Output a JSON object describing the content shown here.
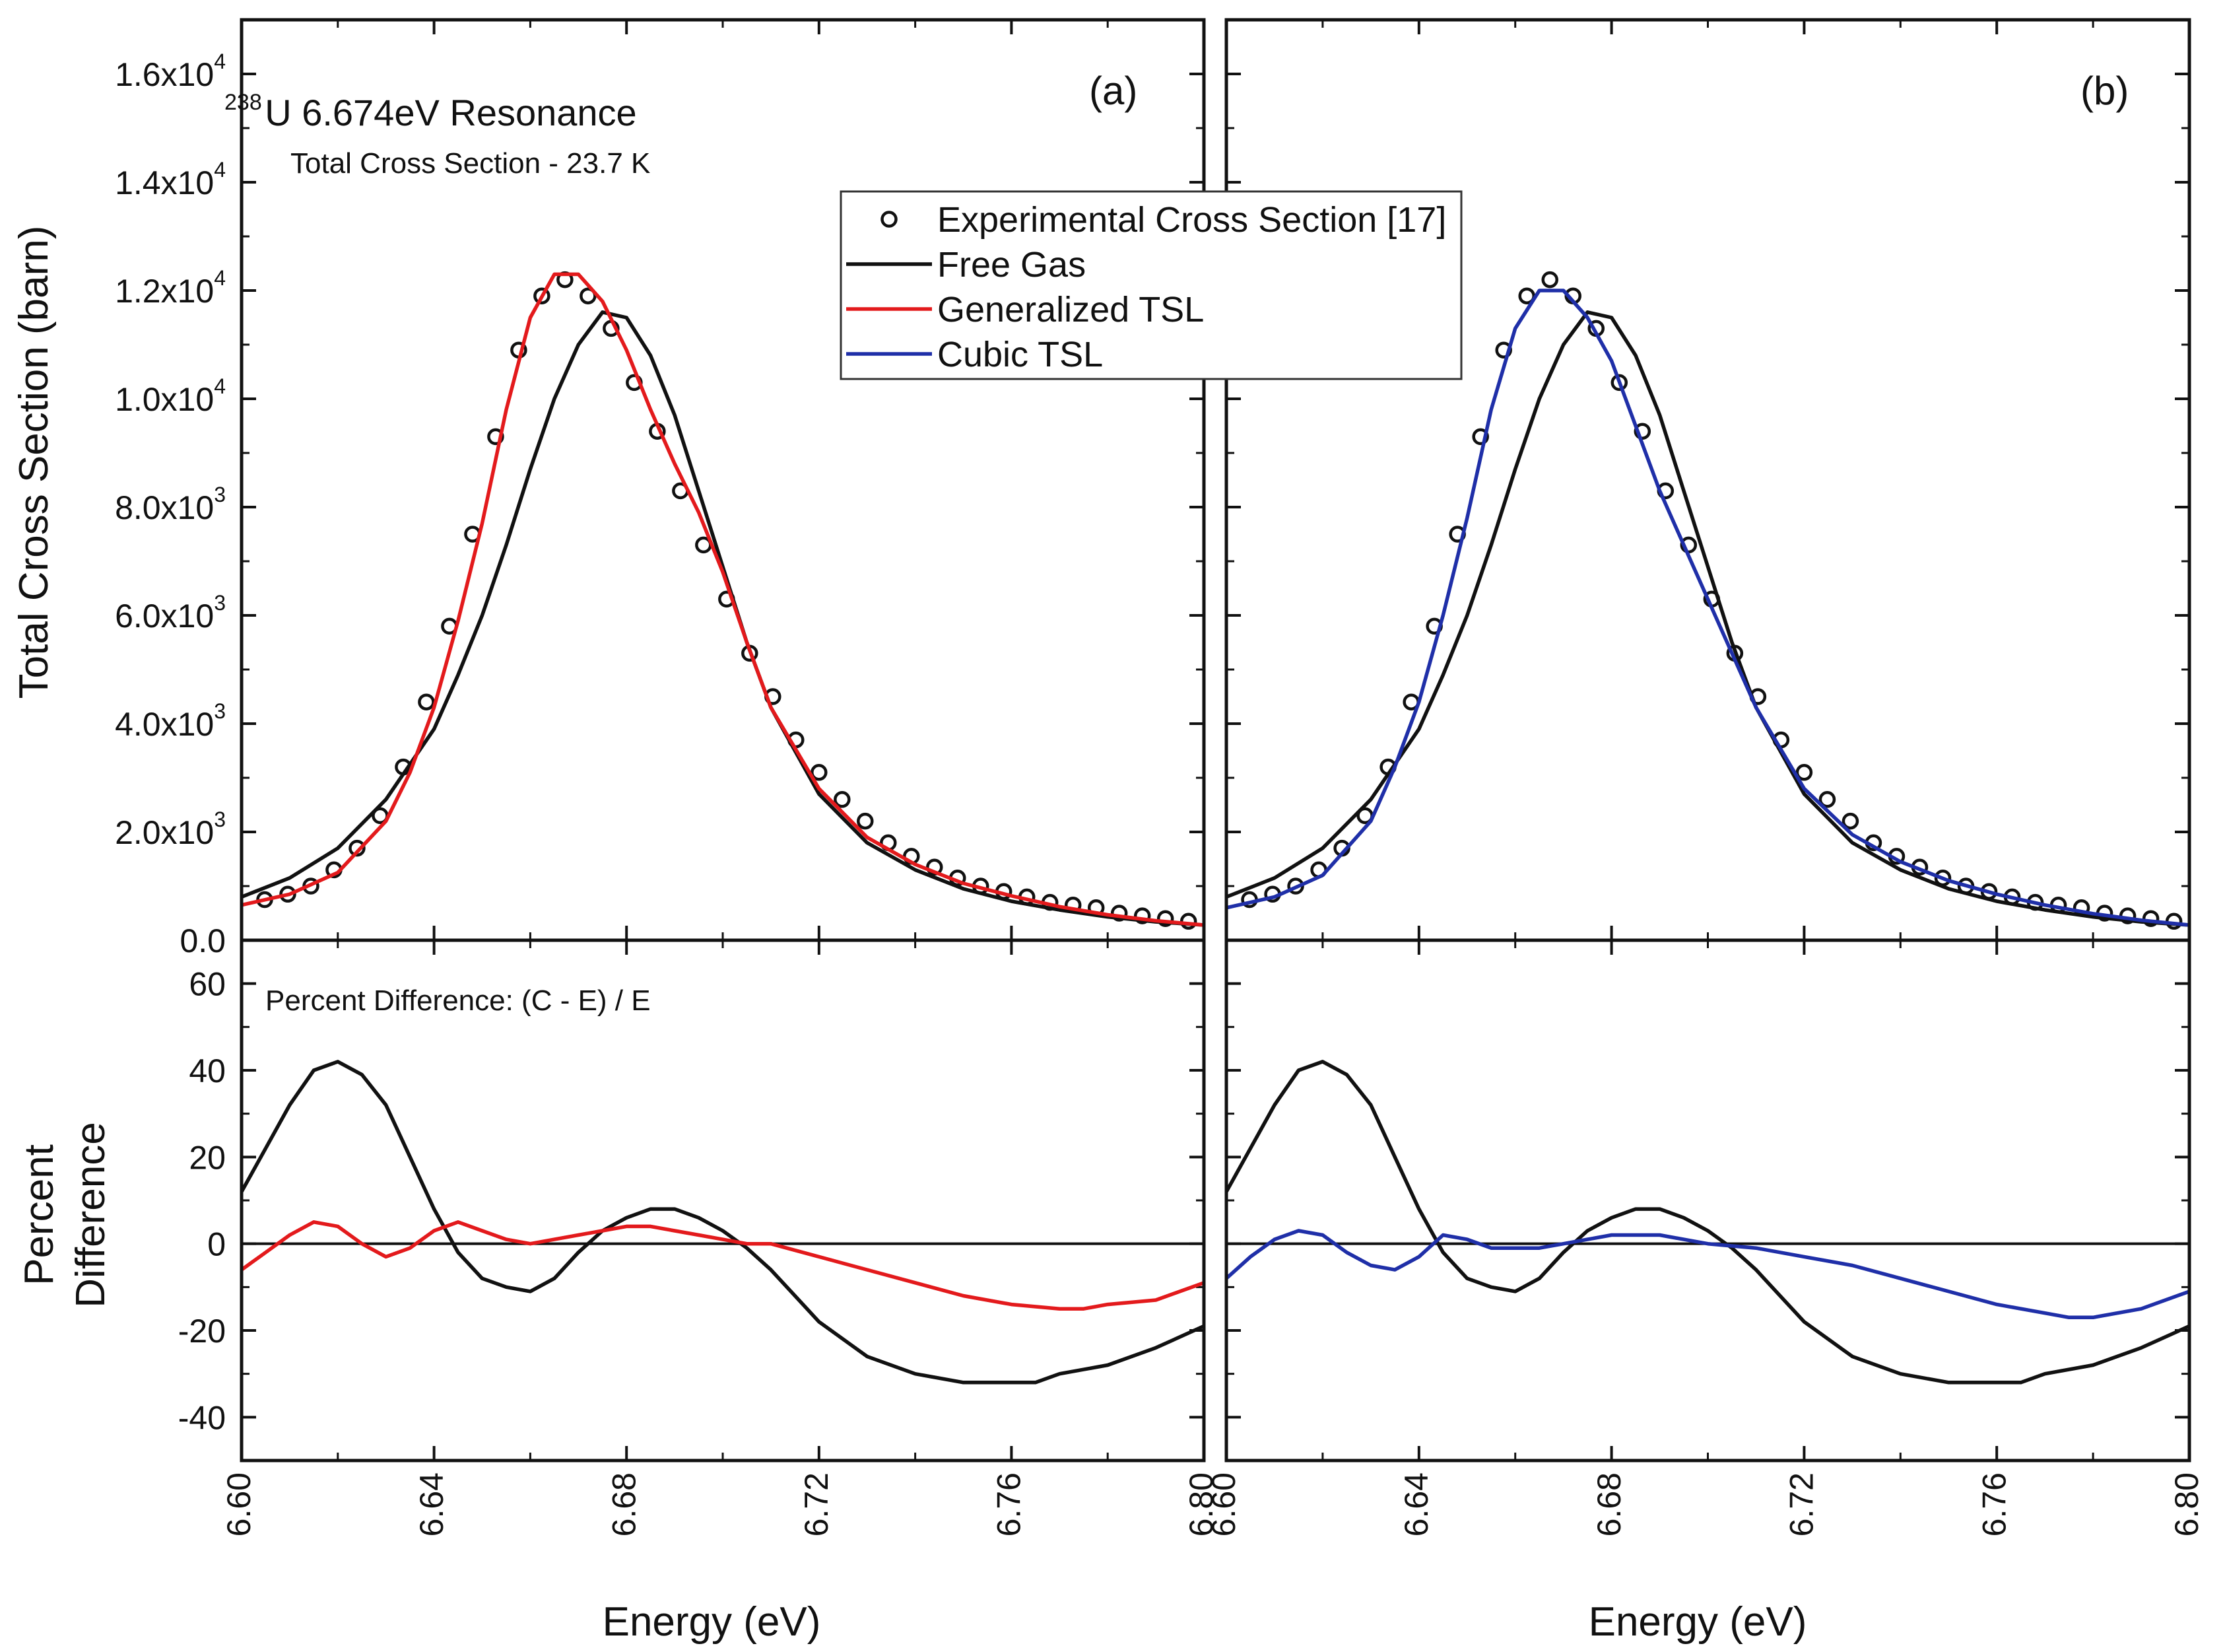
{
  "chart_data": [
    {
      "type": "line",
      "panel_label": "(a)",
      "annotation_title": "U 6.674eV Resonance",
      "annotation_title_sup": "238",
      "annotation_subtitle": "Total Cross Section - 23.7 K",
      "ylabel": "Total Cross Section (barn)",
      "xlabel": "Energy (eV)",
      "xlim": [
        6.6,
        6.8
      ],
      "ylim": [
        0,
        17000
      ],
      "x_ticks": [
        "6.60",
        "6.64",
        "6.68",
        "6.72",
        "6.76",
        "6.80"
      ],
      "y_ticks": [
        {
          "base": "0.0",
          "exp": ""
        },
        {
          "base": "2.0x10",
          "exp": "3"
        },
        {
          "base": "4.0x10",
          "exp": "3"
        },
        {
          "base": "6.0x10",
          "exp": "3"
        },
        {
          "base": "8.0x10",
          "exp": "3"
        },
        {
          "base": "1.0x10",
          "exp": "4"
        },
        {
          "base": "1.2x10",
          "exp": "4"
        },
        {
          "base": "1.4x10",
          "exp": "4"
        },
        {
          "base": "1.6x10",
          "exp": "4"
        }
      ],
      "legend": {
        "placement": "top-right",
        "items": [
          "Experimental Cross Section [17]",
          "Free Gas",
          "Generalized TSL",
          "Cubic TSL"
        ]
      },
      "series": [
        {
          "name": "Experimental Cross Section [17]",
          "color": "#111111",
          "style": "markers",
          "x": [
            6.6048,
            6.6096,
            6.6144,
            6.6192,
            6.624,
            6.6288,
            6.6336,
            6.6384,
            6.6432,
            6.648,
            6.6528,
            6.6576,
            6.6624,
            6.6672,
            6.672,
            6.6768,
            6.6816,
            6.6864,
            6.6912,
            6.696,
            6.7008,
            6.7056,
            6.7104,
            6.7152,
            6.72,
            6.7248,
            6.7296,
            6.7344,
            6.7392,
            6.744,
            6.7488,
            6.7536,
            6.7584,
            6.7632,
            6.768,
            6.7728,
            6.7776,
            6.7824,
            6.7872,
            6.792,
            6.7968
          ],
          "y": [
            750,
            850,
            1000,
            1300,
            1700,
            2300,
            3200,
            4400,
            5800,
            7500,
            9300,
            10900,
            11900,
            12200,
            11900,
            11300,
            10300,
            9400,
            8300,
            7300,
            6300,
            5300,
            4500,
            3700,
            3100,
            2600,
            2200,
            1800,
            1550,
            1350,
            1150,
            1000,
            900,
            800,
            700,
            650,
            600,
            500,
            450,
            400,
            350
          ]
        },
        {
          "name": "Free Gas",
          "color": "#111111",
          "style": "line",
          "x": [
            6.6,
            6.61,
            6.62,
            6.63,
            6.64,
            6.645,
            6.65,
            6.655,
            6.66,
            6.665,
            6.67,
            6.675,
            6.68,
            6.685,
            6.69,
            6.695,
            6.7,
            6.705,
            6.71,
            6.72,
            6.73,
            6.74,
            6.75,
            6.76,
            6.77,
            6.78,
            6.79,
            6.8
          ],
          "y": [
            800,
            1150,
            1700,
            2600,
            3900,
            4900,
            6000,
            7300,
            8700,
            10000,
            11000,
            11600,
            11500,
            10800,
            9700,
            8300,
            6900,
            5500,
            4300,
            2700,
            1800,
            1300,
            950,
            720,
            560,
            430,
            340,
            280
          ]
        },
        {
          "name": "Generalized TSL",
          "color": "#e31a1c",
          "style": "line",
          "x": [
            6.6,
            6.61,
            6.62,
            6.63,
            6.635,
            6.64,
            6.645,
            6.65,
            6.655,
            6.66,
            6.665,
            6.67,
            6.675,
            6.68,
            6.685,
            6.69,
            6.695,
            6.7,
            6.705,
            6.71,
            6.72,
            6.73,
            6.74,
            6.75,
            6.76,
            6.77,
            6.78,
            6.79,
            6.8
          ],
          "y": [
            650,
            850,
            1250,
            2200,
            3100,
            4300,
            5900,
            7700,
            9800,
            11500,
            12300,
            12300,
            11800,
            10900,
            9800,
            8800,
            7900,
            6800,
            5500,
            4300,
            2800,
            1900,
            1400,
            1050,
            820,
            620,
            470,
            360,
            280
          ]
        }
      ]
    },
    {
      "type": "line",
      "ylabel": "Percent Difference",
      "xlabel": "Energy (eV)",
      "annotation": "Percent Difference: (C - E) / E",
      "xlim": [
        6.6,
        6.8
      ],
      "ylim": [
        -50,
        70
      ],
      "x_ticks": [
        "6.60",
        "6.64",
        "6.68",
        "6.72",
        "6.76",
        "6.80"
      ],
      "y_ticks": [
        "-40",
        "-20",
        "0",
        "20",
        "40",
        "60"
      ],
      "series": [
        {
          "name": "Free Gas",
          "color": "#111111",
          "style": "line",
          "x": [
            6.6,
            6.605,
            6.61,
            6.615,
            6.62,
            6.625,
            6.63,
            6.635,
            6.64,
            6.645,
            6.65,
            6.655,
            6.66,
            6.665,
            6.67,
            6.675,
            6.68,
            6.685,
            6.69,
            6.695,
            6.7,
            6.705,
            6.71,
            6.715,
            6.72,
            6.73,
            6.74,
            6.75,
            6.76,
            6.765,
            6.77,
            6.78,
            6.79,
            6.8
          ],
          "y": [
            12,
            22,
            32,
            40,
            42,
            39,
            32,
            20,
            8,
            -2,
            -8,
            -10,
            -11,
            -8,
            -2,
            3,
            6,
            8,
            8,
            6,
            3,
            -1,
            -6,
            -12,
            -18,
            -26,
            -30,
            -32,
            -32,
            -32,
            -30,
            -28,
            -24,
            -19
          ]
        },
        {
          "name": "Generalized TSL",
          "color": "#e31a1c",
          "style": "line",
          "x": [
            6.6,
            6.605,
            6.61,
            6.615,
            6.62,
            6.625,
            6.63,
            6.635,
            6.64,
            6.645,
            6.65,
            6.655,
            6.66,
            6.665,
            6.67,
            6.675,
            6.68,
            6.685,
            6.69,
            6.695,
            6.7,
            6.705,
            6.71,
            6.72,
            6.73,
            6.74,
            6.75,
            6.76,
            6.77,
            6.775,
            6.78,
            6.79,
            6.8
          ],
          "y": [
            -6,
            -2,
            2,
            5,
            4,
            0,
            -3,
            -1,
            3,
            5,
            3,
            1,
            0,
            1,
            2,
            3,
            4,
            4,
            3,
            2,
            1,
            0,
            0,
            -3,
            -6,
            -9,
            -12,
            -14,
            -15,
            -15,
            -14,
            -13,
            -9
          ]
        }
      ]
    },
    {
      "type": "line",
      "panel_label": "(b)",
      "xlabel": "Energy (eV)",
      "xlim": [
        6.6,
        6.8
      ],
      "ylim": [
        0,
        17000
      ],
      "x_ticks": [
        "6.60",
        "6.64",
        "6.68",
        "6.72",
        "6.76",
        "6.80"
      ],
      "series": [
        {
          "name": "Experimental Cross Section [17]",
          "color": "#111111",
          "style": "markers",
          "x": [
            6.6048,
            6.6096,
            6.6144,
            6.6192,
            6.624,
            6.6288,
            6.6336,
            6.6384,
            6.6432,
            6.648,
            6.6528,
            6.6576,
            6.6624,
            6.6672,
            6.672,
            6.6768,
            6.6816,
            6.6864,
            6.6912,
            6.696,
            6.7008,
            6.7056,
            6.7104,
            6.7152,
            6.72,
            6.7248,
            6.7296,
            6.7344,
            6.7392,
            6.744,
            6.7488,
            6.7536,
            6.7584,
            6.7632,
            6.768,
            6.7728,
            6.7776,
            6.7824,
            6.7872,
            6.792,
            6.7968
          ],
          "y": [
            750,
            850,
            1000,
            1300,
            1700,
            2300,
            3200,
            4400,
            5800,
            7500,
            9300,
            10900,
            11900,
            12200,
            11900,
            11300,
            10300,
            9400,
            8300,
            7300,
            6300,
            5300,
            4500,
            3700,
            3100,
            2600,
            2200,
            1800,
            1550,
            1350,
            1150,
            1000,
            900,
            800,
            700,
            650,
            600,
            500,
            450,
            400,
            350
          ]
        },
        {
          "name": "Free Gas",
          "color": "#111111",
          "style": "line",
          "x": [
            6.6,
            6.61,
            6.62,
            6.63,
            6.64,
            6.645,
            6.65,
            6.655,
            6.66,
            6.665,
            6.67,
            6.675,
            6.68,
            6.685,
            6.69,
            6.695,
            6.7,
            6.705,
            6.71,
            6.72,
            6.73,
            6.74,
            6.75,
            6.76,
            6.77,
            6.78,
            6.79,
            6.8
          ],
          "y": [
            800,
            1150,
            1700,
            2600,
            3900,
            4900,
            6000,
            7300,
            8700,
            10000,
            11000,
            11600,
            11500,
            10800,
            9700,
            8300,
            6900,
            5500,
            4300,
            2700,
            1800,
            1300,
            950,
            720,
            560,
            430,
            340,
            280
          ]
        },
        {
          "name": "Cubic TSL",
          "color": "#1f2fa8",
          "style": "line",
          "x": [
            6.6,
            6.61,
            6.62,
            6.63,
            6.635,
            6.64,
            6.645,
            6.65,
            6.655,
            6.66,
            6.665,
            6.67,
            6.675,
            6.68,
            6.685,
            6.69,
            6.695,
            6.7,
            6.705,
            6.71,
            6.72,
            6.73,
            6.74,
            6.75,
            6.76,
            6.77,
            6.78,
            6.79,
            6.8
          ],
          "y": [
            600,
            800,
            1200,
            2200,
            3200,
            4400,
            6000,
            7800,
            9800,
            11300,
            12000,
            12000,
            11500,
            10700,
            9500,
            8300,
            7300,
            6300,
            5300,
            4300,
            2800,
            1950,
            1450,
            1100,
            850,
            650,
            490,
            370,
            280
          ]
        }
      ]
    },
    {
      "type": "line",
      "xlabel": "Energy (eV)",
      "xlim": [
        6.6,
        6.8
      ],
      "ylim": [
        -50,
        70
      ],
      "x_ticks": [
        "6.60",
        "6.64",
        "6.68",
        "6.72",
        "6.76",
        "6.80"
      ],
      "series": [
        {
          "name": "Free Gas",
          "color": "#111111",
          "style": "line",
          "x": [
            6.6,
            6.605,
            6.61,
            6.615,
            6.62,
            6.625,
            6.63,
            6.635,
            6.64,
            6.645,
            6.65,
            6.655,
            6.66,
            6.665,
            6.67,
            6.675,
            6.68,
            6.685,
            6.69,
            6.695,
            6.7,
            6.705,
            6.71,
            6.715,
            6.72,
            6.73,
            6.74,
            6.75,
            6.76,
            6.765,
            6.77,
            6.78,
            6.79,
            6.8
          ],
          "y": [
            12,
            22,
            32,
            40,
            42,
            39,
            32,
            20,
            8,
            -2,
            -8,
            -10,
            -11,
            -8,
            -2,
            3,
            6,
            8,
            8,
            6,
            3,
            -1,
            -6,
            -12,
            -18,
            -26,
            -30,
            -32,
            -32,
            -32,
            -30,
            -28,
            -24,
            -19
          ]
        },
        {
          "name": "Cubic TSL",
          "color": "#1f2fa8",
          "style": "line",
          "x": [
            6.6,
            6.605,
            6.61,
            6.615,
            6.62,
            6.625,
            6.63,
            6.635,
            6.64,
            6.645,
            6.65,
            6.655,
            6.66,
            6.665,
            6.67,
            6.675,
            6.68,
            6.685,
            6.69,
            6.695,
            6.7,
            6.71,
            6.72,
            6.73,
            6.74,
            6.75,
            6.76,
            6.77,
            6.775,
            6.78,
            6.79,
            6.8
          ],
          "y": [
            -8,
            -3,
            1,
            3,
            2,
            -2,
            -5,
            -6,
            -3,
            2,
            1,
            -1,
            -1,
            -1,
            0,
            1,
            2,
            2,
            2,
            1,
            0,
            -1,
            -3,
            -5,
            -8,
            -11,
            -14,
            -16,
            -17,
            -17,
            -15,
            -11
          ]
        }
      ]
    }
  ]
}
